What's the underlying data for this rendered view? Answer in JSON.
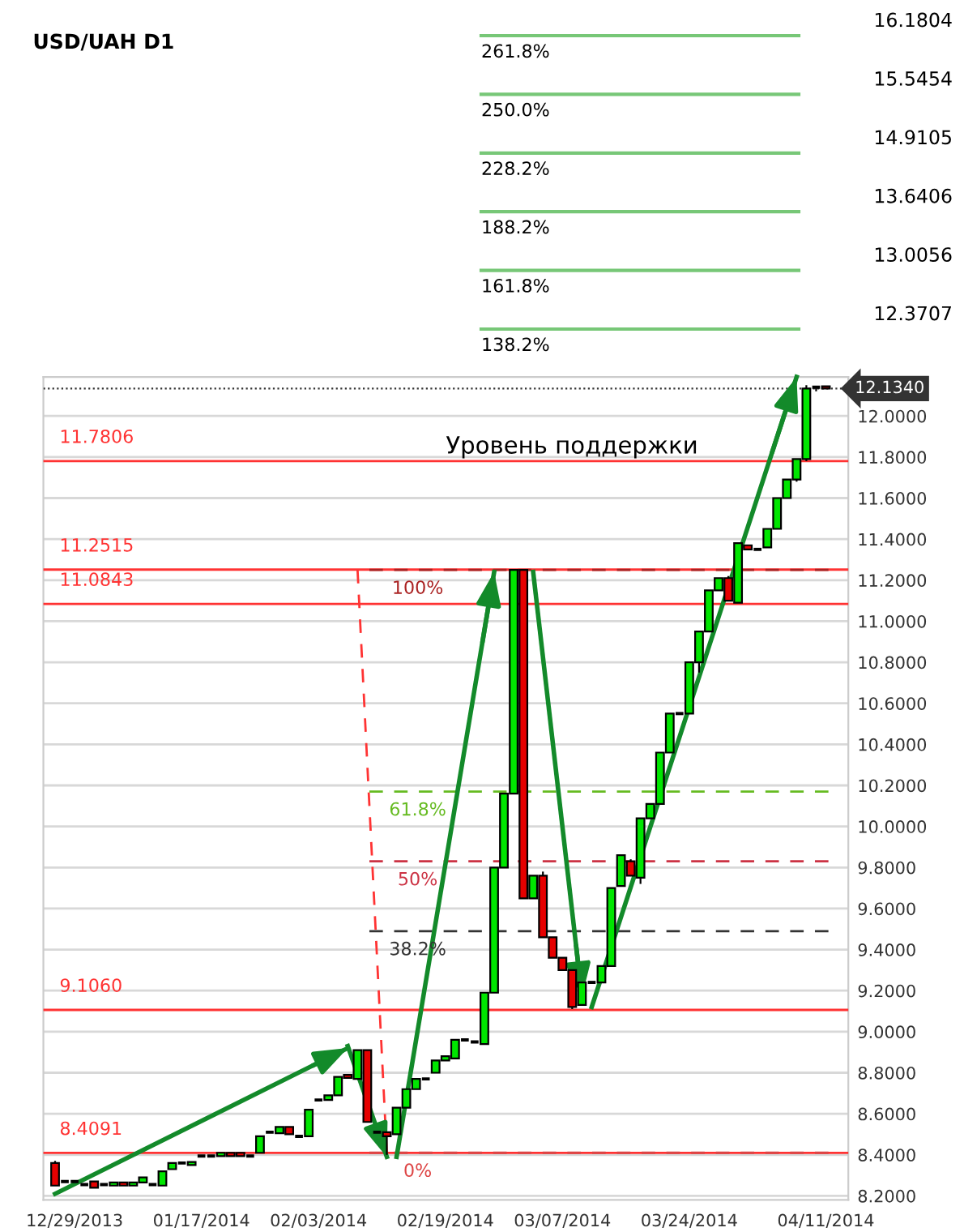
{
  "chart_data": [
    {
      "type": "candlestick",
      "title": "USD/UAH D1",
      "categories": [
        null,
        null,
        "12/29/2013",
        null,
        null,
        null,
        null,
        null,
        null,
        null,
        null,
        null,
        null,
        null,
        null,
        "01/17/2014",
        null,
        null,
        null,
        null,
        null,
        null,
        null,
        null,
        null,
        null,
        null,
        "02/03/2014",
        null,
        null,
        null,
        null,
        null,
        null,
        null,
        null,
        null,
        null,
        null,
        null,
        "02/19/2014",
        null,
        null,
        null,
        null,
        null,
        null,
        null,
        null,
        null,
        null,
        null,
        "03/07/2014",
        null,
        null,
        null,
        null,
        null,
        null,
        null,
        null,
        null,
        null,
        null,
        null,
        "03/24/2014",
        null,
        null,
        null,
        null,
        null,
        null,
        null,
        null,
        null,
        null,
        null,
        null,
        null,
        "04/11/2014"
      ],
      "ohlc": [
        [
          8.36,
          8.37,
          8.25,
          8.25
        ],
        [
          8.27,
          8.27,
          8.27,
          8.27
        ],
        [
          8.27,
          8.27,
          8.27,
          8.27
        ],
        [
          8.255,
          8.255,
          8.255,
          8.255
        ],
        [
          8.27,
          8.27,
          8.24,
          8.24
        ],
        [
          8.255,
          8.255,
          8.255,
          8.255
        ],
        [
          8.25,
          8.265,
          8.25,
          8.265
        ],
        [
          8.265,
          8.265,
          8.25,
          8.25
        ],
        [
          8.25,
          8.265,
          8.25,
          8.265
        ],
        [
          8.265,
          8.29,
          8.265,
          8.29
        ],
        [
          8.255,
          8.255,
          8.255,
          8.255
        ],
        [
          8.25,
          8.32,
          8.25,
          8.32
        ],
        [
          8.33,
          8.36,
          8.33,
          8.36
        ],
        [
          8.36,
          8.36,
          8.36,
          8.36
        ],
        [
          8.35,
          8.365,
          8.35,
          8.365
        ],
        [
          8.394,
          8.394,
          8.394,
          8.394
        ],
        [
          8.394,
          8.394,
          8.394,
          8.394
        ],
        [
          8.394,
          8.41,
          8.394,
          8.41
        ],
        [
          8.41,
          8.41,
          8.394,
          8.394
        ],
        [
          8.41,
          8.41,
          8.394,
          8.394
        ],
        [
          8.394,
          8.394,
          8.394,
          8.394
        ],
        [
          8.41,
          8.49,
          8.41,
          8.49
        ],
        [
          8.51,
          8.51,
          8.51,
          8.51
        ],
        [
          8.505,
          8.536,
          8.505,
          8.536
        ],
        [
          8.536,
          8.536,
          8.5,
          8.5
        ],
        [
          8.49,
          8.49,
          8.49,
          8.49
        ],
        [
          8.49,
          8.62,
          8.49,
          8.62
        ],
        [
          8.667,
          8.667,
          8.667,
          8.667
        ],
        [
          8.667,
          8.69,
          8.667,
          8.69
        ],
        [
          8.69,
          8.78,
          8.69,
          8.78
        ],
        [
          8.79,
          8.79,
          8.775,
          8.775
        ],
        [
          8.77,
          8.91,
          8.77,
          8.91
        ],
        [
          8.91,
          8.91,
          8.56,
          8.56
        ],
        [
          8.51,
          8.51,
          8.51,
          8.51
        ],
        [
          8.51,
          8.51,
          8.4,
          8.49
        ],
        [
          8.5,
          8.63,
          8.5,
          8.63
        ],
        [
          8.63,
          8.72,
          8.63,
          8.72
        ],
        [
          8.72,
          8.77,
          8.72,
          8.77
        ],
        [
          8.77,
          8.77,
          8.77,
          8.77
        ],
        [
          8.8,
          8.86,
          8.8,
          8.86
        ],
        [
          8.86,
          8.88,
          8.86,
          8.88
        ],
        [
          8.87,
          8.96,
          8.87,
          8.96
        ],
        [
          8.96,
          8.96,
          8.96,
          8.96
        ],
        [
          8.95,
          8.95,
          8.95,
          8.95
        ],
        [
          8.94,
          9.19,
          8.94,
          9.19
        ],
        [
          9.19,
          9.8,
          9.19,
          9.8
        ],
        [
          9.8,
          10.16,
          9.8,
          10.16
        ],
        [
          10.16,
          11.25,
          10.16,
          11.25
        ],
        [
          11.25,
          11.25,
          9.65,
          9.65
        ],
        [
          9.65,
          9.76,
          9.65,
          9.76
        ],
        [
          9.76,
          9.78,
          9.46,
          9.46
        ],
        [
          9.46,
          9.46,
          9.36,
          9.36
        ],
        [
          9.36,
          9.36,
          9.3,
          9.3
        ],
        [
          9.3,
          9.3,
          9.11,
          9.12
        ],
        [
          9.13,
          9.24,
          9.13,
          9.24
        ],
        [
          9.24,
          9.24,
          9.24,
          9.24
        ],
        [
          9.24,
          9.32,
          9.24,
          9.32
        ],
        [
          9.32,
          9.7,
          9.32,
          9.7
        ],
        [
          9.71,
          9.86,
          9.71,
          9.86
        ],
        [
          9.83,
          9.84,
          9.76,
          9.76
        ],
        [
          9.75,
          10.04,
          9.72,
          10.04
        ],
        [
          10.04,
          10.11,
          10.04,
          10.11
        ],
        [
          10.11,
          10.36,
          10.11,
          10.36
        ],
        [
          10.36,
          10.55,
          10.36,
          10.55
        ],
        [
          10.55,
          10.55,
          10.55,
          10.55
        ],
        [
          10.55,
          10.8,
          10.55,
          10.8
        ],
        [
          10.8,
          10.95,
          10.75,
          10.95
        ],
        [
          10.95,
          11.15,
          10.95,
          11.15
        ],
        [
          11.15,
          11.21,
          11.15,
          11.21
        ],
        [
          11.21,
          11.22,
          11.1,
          11.1
        ],
        [
          11.09,
          11.38,
          11.09,
          11.38
        ],
        [
          11.37,
          11.37,
          11.35,
          11.35
        ],
        [
          11.35,
          11.35,
          11.35,
          11.35
        ],
        [
          11.36,
          11.45,
          11.36,
          11.45
        ],
        [
          11.45,
          11.6,
          11.45,
          11.6
        ],
        [
          11.6,
          11.69,
          11.6,
          11.69
        ],
        [
          11.69,
          11.79,
          11.68,
          11.79
        ],
        [
          11.79,
          12.15,
          11.78,
          12.134
        ],
        [
          12.14,
          12.14,
          12.12,
          12.14
        ],
        [
          12.145,
          12.145,
          12.134,
          12.134
        ]
      ],
      "series": [
        {
          "type": "line",
          "color": "#138a2a",
          "line_style": "solid",
          "values": [
            8.21,
            null,
            null,
            null,
            null,
            null,
            null,
            null,
            null,
            null,
            null,
            null,
            null,
            null,
            null,
            null,
            null,
            null,
            null,
            null,
            null,
            null,
            null,
            null,
            null,
            null,
            null,
            null,
            null,
            null,
            8.92,
            null,
            null,
            null,
            null,
            null,
            null,
            null,
            null,
            null,
            null,
            null,
            null,
            null,
            null,
            null,
            null,
            null,
            null,
            null,
            null,
            null,
            null,
            null,
            null,
            null,
            null,
            null,
            null,
            null,
            null,
            null,
            null,
            null,
            null,
            null,
            null,
            null,
            null,
            null,
            null,
            null,
            null,
            null,
            null,
            null,
            null,
            null,
            null,
            null
          ]
        },
        {
          "type": "line",
          "color": "#138a2a",
          "line_style": "solid",
          "values": [
            null,
            null,
            null,
            null,
            null,
            null,
            null,
            null,
            null,
            null,
            null,
            null,
            null,
            null,
            null,
            null,
            null,
            null,
            null,
            null,
            null,
            null,
            null,
            null,
            null,
            null,
            null,
            null,
            null,
            null,
            8.93,
            null,
            null,
            null,
            8.39,
            null,
            null,
            null,
            null,
            null,
            null,
            null,
            null,
            null,
            null,
            null,
            null,
            null,
            null,
            null,
            null,
            null,
            null,
            null,
            null,
            null,
            null,
            null,
            null,
            null,
            null,
            null,
            null,
            null,
            null,
            null,
            null,
            null,
            null,
            null,
            null,
            null,
            null,
            null,
            null,
            null,
            null,
            null,
            null,
            null
          ]
        },
        {
          "type": "line",
          "color": "#138a2a",
          "line_style": "solid",
          "values": [
            null,
            null,
            null,
            null,
            null,
            null,
            null,
            null,
            null,
            null,
            null,
            null,
            null,
            null,
            null,
            null,
            null,
            null,
            null,
            null,
            null,
            null,
            null,
            null,
            null,
            null,
            null,
            null,
            null,
            null,
            null,
            null,
            null,
            null,
            null,
            8.39,
            null,
            null,
            null,
            null,
            null,
            null,
            null,
            null,
            null,
            11.24,
            null,
            null,
            null,
            null,
            null,
            null,
            null,
            null,
            null,
            null,
            null,
            null,
            null,
            null,
            null,
            null,
            null,
            null,
            null,
            null,
            null,
            null,
            null,
            null,
            null,
            null,
            null,
            null,
            null,
            null,
            null,
            null,
            null,
            null
          ]
        },
        {
          "type": "line",
          "color": "#138a2a",
          "line_style": "solid",
          "values": [
            null,
            null,
            null,
            null,
            null,
            null,
            null,
            null,
            null,
            null,
            null,
            null,
            null,
            null,
            null,
            null,
            null,
            null,
            null,
            null,
            null,
            null,
            null,
            null,
            null,
            null,
            null,
            null,
            null,
            null,
            null,
            null,
            null,
            null,
            null,
            null,
            null,
            null,
            null,
            null,
            null,
            null,
            null,
            null,
            null,
            null,
            null,
            null,
            null,
            11.24,
            null,
            null,
            null,
            null,
            9.17,
            null,
            null,
            null,
            null,
            null,
            null,
            null,
            null,
            null,
            null,
            null,
            null,
            null,
            null,
            null,
            null,
            null,
            null,
            null,
            null,
            null,
            null,
            null,
            null,
            null
          ]
        },
        {
          "type": "line",
          "color": "#138a2a",
          "line_style": "solid",
          "values": [
            null,
            null,
            null,
            null,
            null,
            null,
            null,
            null,
            null,
            null,
            null,
            null,
            null,
            null,
            null,
            null,
            null,
            null,
            null,
            null,
            null,
            null,
            null,
            null,
            null,
            null,
            null,
            null,
            null,
            null,
            null,
            null,
            null,
            null,
            null,
            null,
            null,
            null,
            null,
            null,
            null,
            null,
            null,
            null,
            null,
            null,
            null,
            null,
            null,
            null,
            null,
            null,
            null,
            null,
            null,
            9.12,
            null,
            null,
            null,
            null,
            null,
            null,
            null,
            null,
            null,
            null,
            null,
            null,
            null,
            null,
            null,
            null,
            null,
            null,
            null,
            null,
            12.19,
            null,
            null,
            null
          ]
        },
        {
          "type": "line",
          "color": "#ff3333",
          "line_style": "dashed",
          "values": [
            null,
            null,
            null,
            null,
            null,
            null,
            null,
            null,
            null,
            null,
            null,
            null,
            null,
            null,
            null,
            null,
            null,
            null,
            null,
            null,
            null,
            null,
            null,
            null,
            null,
            null,
            null,
            null,
            null,
            null,
            null,
            11.25,
            null,
            null,
            8.41,
            null,
            null,
            null,
            null,
            null,
            null,
            null,
            null,
            null,
            null,
            null,
            null,
            null,
            null,
            null,
            null,
            null,
            null,
            null,
            null,
            null,
            null,
            null,
            null,
            null,
            null,
            null,
            null,
            null,
            null,
            null,
            null,
            null,
            null,
            null,
            null,
            null,
            null,
            null,
            null,
            null,
            null,
            null,
            null,
            null
          ]
        }
      ],
      "ref_lines": [
        {
          "axis": "y",
          "value": 11.7806,
          "label": "11.7806",
          "color": "#ff3333",
          "line_style": "solid"
        },
        {
          "axis": "y",
          "value": 11.2515,
          "label": "11.2515",
          "color": "#ff3333",
          "line_style": "solid"
        },
        {
          "axis": "y",
          "value": 11.0843,
          "label": "11.0843",
          "color": "#ff3333",
          "line_style": "solid"
        },
        {
          "axis": "y",
          "value": 9.106,
          "label": "9.1060",
          "color": "#ff3333",
          "line_style": "solid"
        },
        {
          "axis": "y",
          "value": 8.4091,
          "label": "8.4091",
          "color": "#ff3333",
          "line_style": "solid"
        },
        {
          "axis": "y",
          "value": 11.25,
          "color": "#aa2222",
          "line_style": "dashed"
        },
        {
          "axis": "y",
          "value": 10.17,
          "color": "#66bb22",
          "line_style": "dashed"
        },
        {
          "axis": "y",
          "value": 9.83,
          "color": "#cc3344",
          "line_style": "dashed"
        },
        {
          "axis": "y",
          "value": 9.49,
          "color": "#333333",
          "line_style": "dashed"
        },
        {
          "axis": "y",
          "value": 8.41,
          "color": "#dd4444",
          "line_style": "dashed"
        },
        {
          "axis": "y",
          "value": 12.134,
          "label": "12.1340",
          "color": "#333333",
          "line_style": "dotted"
        }
      ],
      "annotations": [
        "Уровень поддержки",
        {
          "text": "100%",
          "y": 11.25
        },
        {
          "text": "61.8%",
          "y": 10.17
        },
        {
          "text": "50%",
          "y": 9.83
        },
        {
          "text": "38.2%",
          "y": 9.49
        },
        {
          "text": "0%",
          "y": 8.41
        }
      ],
      "ylim": [
        8.18,
        12.19
      ],
      "yticks": [
        {
          "value": 8.2,
          "label": "8.2000"
        },
        {
          "value": 8.4,
          "label": "8.4000"
        },
        {
          "value": 8.6,
          "label": "8.6000"
        },
        {
          "value": 8.8,
          "label": "8.8000"
        },
        {
          "value": 9.0,
          "label": "9.0000"
        },
        {
          "value": 9.2,
          "label": "9.2000"
        },
        {
          "value": 9.4,
          "label": "9.4000"
        },
        {
          "value": 9.6,
          "label": "9.6000"
        },
        {
          "value": 9.8,
          "label": "9.8000"
        },
        {
          "value": 10.0,
          "label": "10.0000"
        },
        {
          "value": 10.2,
          "label": "10.2000"
        },
        {
          "value": 10.4,
          "label": "10.4000"
        },
        {
          "value": 10.6,
          "label": "10.6000"
        },
        {
          "value": 10.8,
          "label": "10.8000"
        },
        {
          "value": 11.0,
          "label": "11.0000"
        },
        {
          "value": 11.2,
          "label": "11.2000"
        },
        {
          "value": 11.4,
          "label": "11.4000"
        },
        {
          "value": 11.6,
          "label": "11.6000"
        },
        {
          "value": 11.8,
          "label": "11.8000"
        },
        {
          "value": 12.0,
          "label": "12.0000"
        }
      ],
      "grid": "y"
    },
    {
      "type": "other",
      "annotations": [
        "261.8%",
        "16.1804",
        "250.0%",
        "15.5454",
        "228.2%",
        "14.9105",
        "188.2%",
        "13.6406",
        "161.8%",
        "13.0056",
        "138.2%",
        "12.3707"
      ]
    }
  ]
}
